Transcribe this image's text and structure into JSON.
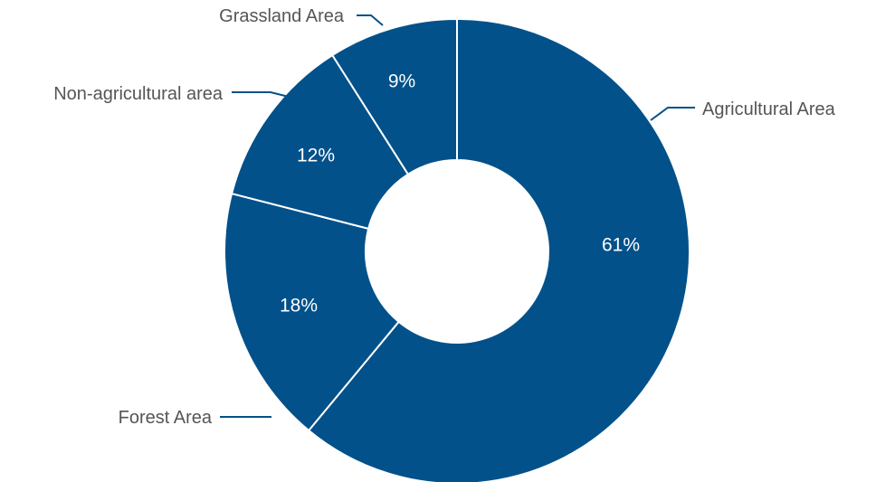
{
  "chart_data": {
    "type": "pie",
    "variant": "donut",
    "categories": [
      "Agricultural Area",
      "Forest Area",
      "Non-agricultural area",
      "Grassland Area"
    ],
    "values": [
      61,
      18,
      12,
      9
    ],
    "value_labels": [
      "61%",
      "18%",
      "12%",
      "9%"
    ],
    "unit": "%",
    "title": "",
    "legend": "none",
    "colors": {
      "slice_fill": "#02518a",
      "slice_border": "#ffffff",
      "value_label_text": "#ffffff",
      "category_label_text": "#555555",
      "leader_line": "#02518a"
    }
  }
}
